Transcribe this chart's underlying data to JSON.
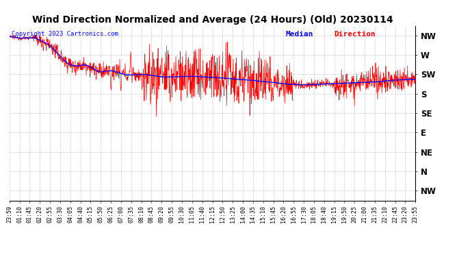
{
  "title": "Wind Direction Normalized and Average (24 Hours) (Old) 20230114",
  "copyright": "Copyright 2023 Cartronics.com",
  "y_labels": [
    "NW",
    "W",
    "SW",
    "S",
    "SE",
    "E",
    "NE",
    "N",
    "NW"
  ],
  "y_values": [
    8,
    7,
    6,
    5,
    4,
    3,
    2,
    1,
    0
  ],
  "x_tick_labels": [
    "23:59",
    "01:10",
    "01:45",
    "02:20",
    "02:55",
    "03:30",
    "04:05",
    "04:40",
    "05:15",
    "05:50",
    "06:25",
    "07:00",
    "07:35",
    "08:10",
    "08:45",
    "09:20",
    "09:55",
    "10:30",
    "11:05",
    "11:40",
    "12:15",
    "12:50",
    "13:25",
    "14:00",
    "14:35",
    "15:10",
    "15:45",
    "16:20",
    "16:55",
    "17:30",
    "18:05",
    "18:40",
    "19:15",
    "19:50",
    "20:25",
    "21:00",
    "21:35",
    "22:10",
    "22:45",
    "23:20",
    "23:55"
  ],
  "background_color": "#ffffff",
  "grid_color": "#c8c8c8",
  "red_color": "#ff0000",
  "blue_color": "#0000ff",
  "title_fontsize": 10,
  "copyright_fontsize": 6.5,
  "legend_fontsize": 8,
  "axis_label_fontsize": 8.5,
  "figsize": [
    6.9,
    3.75
  ],
  "dpi": 100
}
